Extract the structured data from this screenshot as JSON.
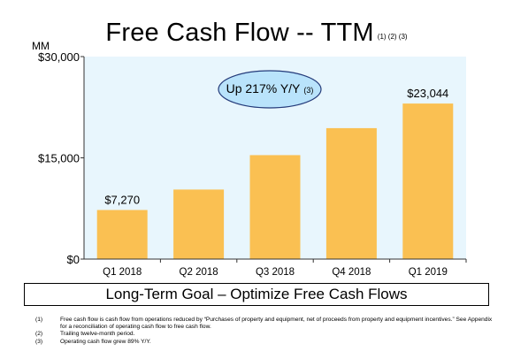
{
  "title": "Free Cash Flow -- TTM",
  "title_notes": "(1) (2) (3)",
  "unit_label": "MM",
  "callout": {
    "text": "Up 217% Y/Y",
    "note": "(3)",
    "fill": "#b9e3fb",
    "stroke": "#243b7a"
  },
  "colors": {
    "bar": "#fac052",
    "plot_bg": "#e8f6fd",
    "axis": "#333333"
  },
  "chart_data": {
    "type": "bar",
    "categories": [
      "Q1 2018",
      "Q2 2018",
      "Q3 2018",
      "Q4 2018",
      "Q1 2019"
    ],
    "values": [
      7270,
      10300,
      15400,
      19400,
      23044
    ],
    "data_labels": [
      "$7,270",
      null,
      null,
      null,
      "$23,044"
    ],
    "y_ticks": [
      0,
      15000,
      30000
    ],
    "y_tick_labels": [
      "$0",
      "$15,000",
      "$30,000"
    ],
    "ylim": [
      0,
      30000
    ],
    "grid": false
  },
  "goal_text": "Long-Term Goal – Optimize Free Cash Flows",
  "footnotes": [
    {
      "num": "(1)",
      "text": "Free cash flow is cash flow from operations reduced by “Purchases of property and equipment, net of proceeds from property and equipment incentives.” See Appendix for a reconciliation of operating cash flow to free cash flow."
    },
    {
      "num": "(2)",
      "text": "Trailing twelve-month period."
    },
    {
      "num": "(3)",
      "text": "Operating cash flow grew 89% Y/Y."
    }
  ]
}
